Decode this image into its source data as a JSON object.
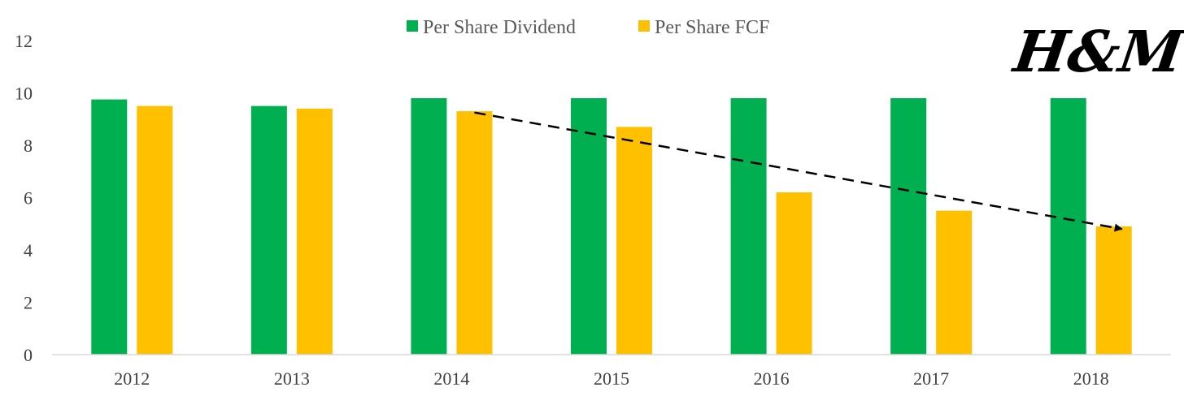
{
  "chart_data": {
    "type": "bar",
    "title": "",
    "xlabel": "",
    "ylabel": "",
    "categories": [
      "2012",
      "2013",
      "2014",
      "2015",
      "2016",
      "2017",
      "2018"
    ],
    "series": [
      {
        "name": "Per Share Dividend",
        "color": "#00b050",
        "values": [
          9.75,
          9.5,
          9.8,
          9.8,
          9.8,
          9.8,
          9.8
        ]
      },
      {
        "name": "Per Share FCF",
        "color": "#ffc000",
        "values": [
          9.5,
          9.4,
          9.3,
          8.7,
          6.2,
          5.5,
          4.9
        ]
      }
    ],
    "ylim": [
      0,
      12
    ],
    "yticks": [
      "0",
      "2",
      "4",
      "6",
      "8",
      "10",
      "12"
    ],
    "grid": false,
    "legend_position": "top-center",
    "annotations": [
      {
        "type": "dashed-arrow",
        "from_category": "2014",
        "from_value": 9.25,
        "to_category": "2018",
        "to_value": 4.8
      }
    ]
  },
  "logo": {
    "text": "H&M",
    "color": "#000000"
  }
}
